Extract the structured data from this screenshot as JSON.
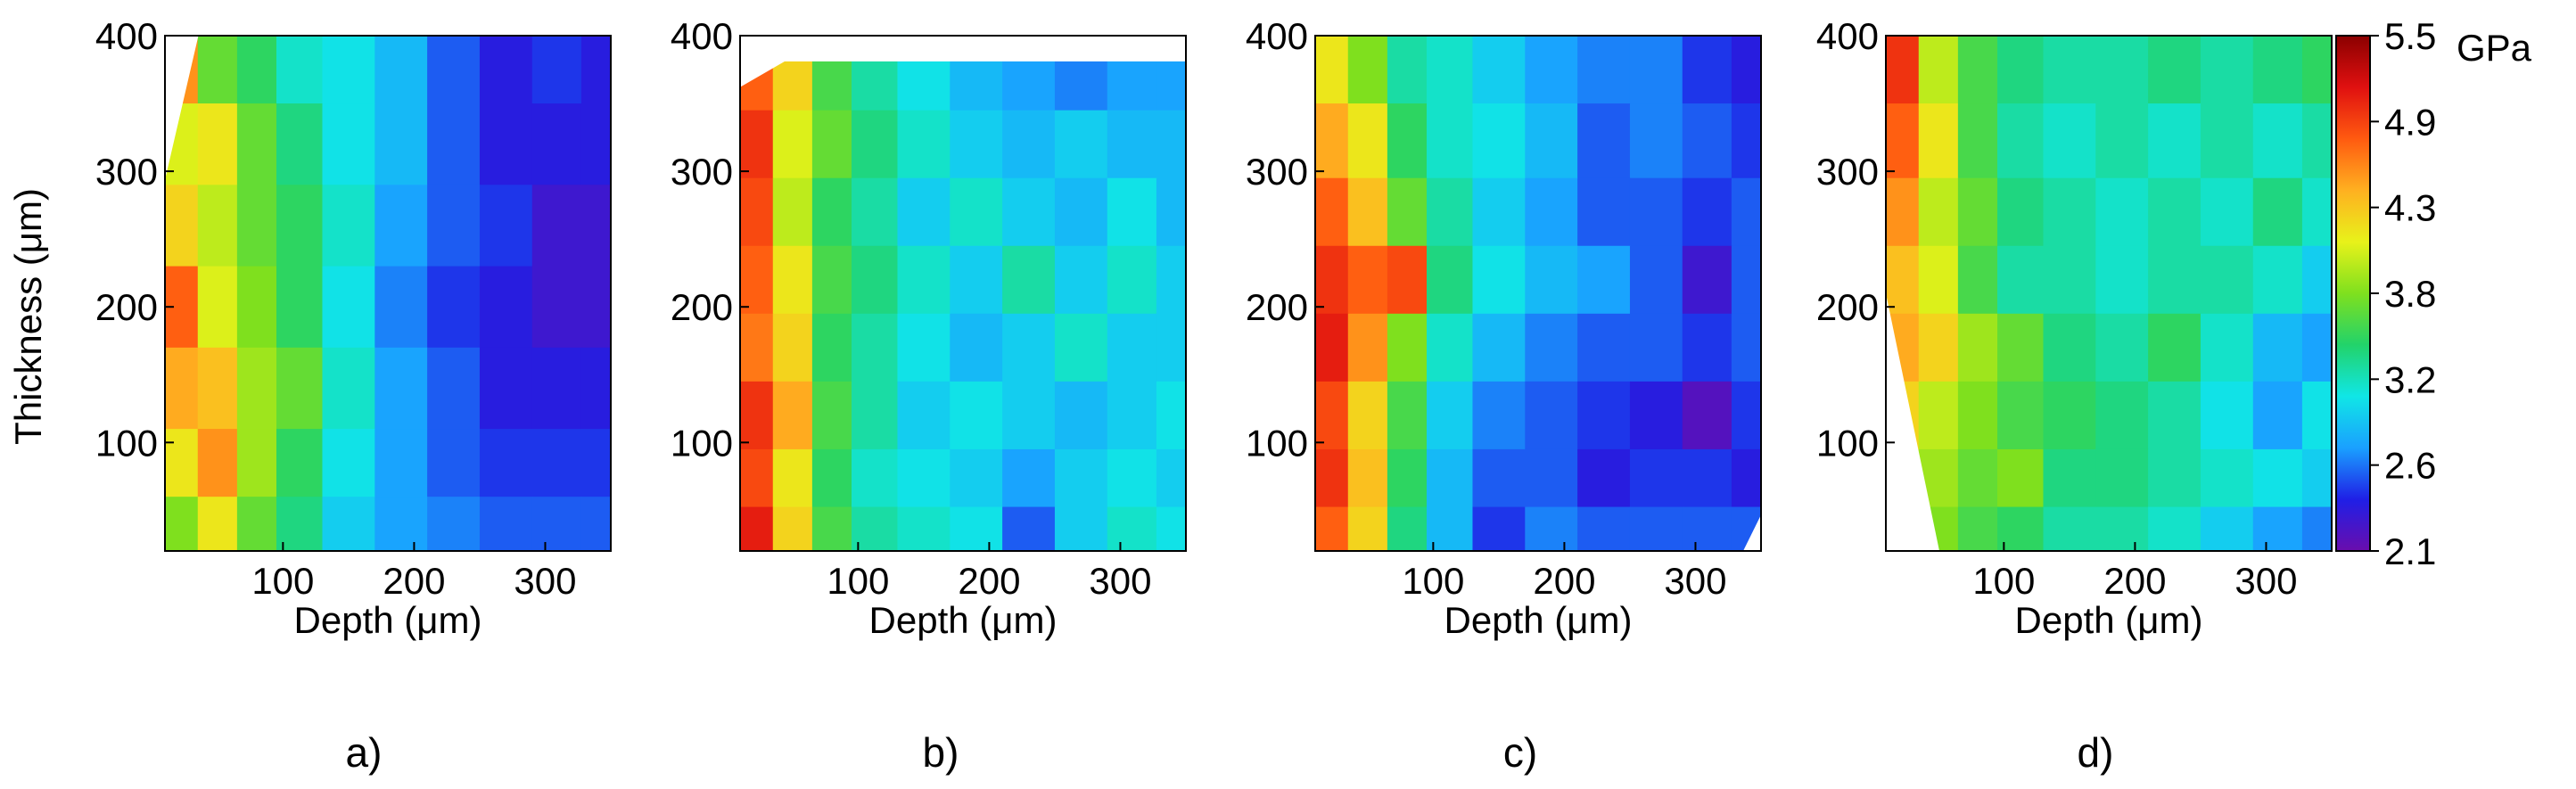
{
  "figure": {
    "y_axis_title": "Thickness (μm)",
    "x_axis_title": "Depth (μm)"
  },
  "colorbar": {
    "unit": "GPa",
    "tick_labels": [
      "5.5",
      "4.9",
      "4.3",
      "3.8",
      "3.2",
      "2.6",
      "2.1"
    ],
    "range": [
      2.1,
      5.5
    ],
    "colors": [
      "#6a0dad",
      "#1f1fe6",
      "#1aa0ff",
      "#10e6e6",
      "#22d36a",
      "#7fe01e",
      "#e8f21a",
      "#ffb020",
      "#ff5a10",
      "#e01010",
      "#8b0000"
    ]
  },
  "chart_data": [
    {
      "type": "heatmap",
      "panel_label": "a)",
      "xlabel": "Depth (μm)",
      "ylabel": "Thickness (μm)",
      "xlim": [
        10,
        350
      ],
      "ylim": [
        20,
        400
      ],
      "x_ticks": [
        100,
        200,
        300
      ],
      "y_ticks": [
        100,
        200,
        300,
        400
      ],
      "value_unit": "GPa",
      "rows_y": [
        380,
        320,
        260,
        200,
        140,
        80,
        40
      ],
      "cols_x": [
        20,
        50,
        80,
        110,
        150,
        190,
        230,
        270,
        310,
        345
      ],
      "values": [
        [
          4.6,
          3.7,
          3.5,
          3.2,
          3.1,
          2.9,
          2.6,
          2.4,
          2.5,
          2.4
        ],
        [
          4.1,
          4.2,
          3.7,
          3.4,
          3.1,
          2.9,
          2.6,
          2.4,
          2.4,
          2.4
        ],
        [
          4.3,
          4.0,
          3.7,
          3.5,
          3.2,
          2.8,
          2.6,
          2.5,
          2.3,
          2.3
        ],
        [
          4.8,
          4.1,
          3.8,
          3.5,
          3.1,
          2.7,
          2.5,
          2.4,
          2.3,
          2.3
        ],
        [
          4.5,
          4.4,
          3.9,
          3.7,
          3.2,
          2.8,
          2.6,
          2.4,
          2.4,
          2.4
        ],
        [
          4.2,
          4.6,
          3.9,
          3.5,
          3.1,
          2.8,
          2.6,
          2.5,
          2.5,
          2.5
        ],
        [
          3.8,
          4.2,
          3.7,
          3.4,
          3.0,
          2.8,
          2.7,
          2.6,
          2.6,
          2.6
        ]
      ]
    },
    {
      "type": "heatmap",
      "panel_label": "b)",
      "xlabel": "Depth (μm)",
      "ylabel": "",
      "xlim": [
        10,
        350
      ],
      "ylim": [
        20,
        400
      ],
      "x_ticks": [
        100,
        200,
        300
      ],
      "y_ticks": [
        100,
        200,
        300,
        400
      ],
      "value_unit": "GPa",
      "rows_y": [
        370,
        320,
        270,
        220,
        170,
        120,
        70,
        35
      ],
      "cols_x": [
        20,
        50,
        80,
        110,
        150,
        190,
        230,
        270,
        310,
        345
      ],
      "values": [
        [
          4.8,
          4.3,
          3.6,
          3.3,
          3.1,
          2.9,
          2.8,
          2.7,
          2.8,
          2.8
        ],
        [
          5.0,
          4.1,
          3.7,
          3.4,
          3.2,
          3.0,
          2.9,
          3.0,
          2.9,
          2.9
        ],
        [
          4.9,
          4.0,
          3.5,
          3.3,
          3.0,
          3.2,
          3.0,
          2.9,
          3.1,
          2.9
        ],
        [
          4.8,
          4.2,
          3.6,
          3.4,
          3.2,
          3.0,
          3.3,
          3.0,
          3.2,
          3.0
        ],
        [
          4.7,
          4.3,
          3.5,
          3.3,
          3.1,
          2.9,
          3.0,
          3.2,
          3.0,
          3.0
        ],
        [
          5.0,
          4.5,
          3.6,
          3.3,
          3.0,
          3.1,
          3.0,
          2.9,
          3.0,
          3.1
        ],
        [
          4.9,
          4.2,
          3.5,
          3.2,
          3.1,
          3.0,
          2.8,
          3.0,
          3.1,
          3.0
        ],
        [
          5.1,
          4.3,
          3.6,
          3.3,
          3.2,
          3.1,
          2.6,
          3.0,
          3.2,
          3.1
        ]
      ]
    },
    {
      "type": "heatmap",
      "panel_label": "c)",
      "xlabel": "Depth (μm)",
      "ylabel": "",
      "xlim": [
        10,
        350
      ],
      "ylim": [
        20,
        400
      ],
      "x_ticks": [
        100,
        200,
        300
      ],
      "y_ticks": [
        100,
        200,
        300,
        400
      ],
      "value_unit": "GPa",
      "rows_y": [
        380,
        320,
        270,
        220,
        170,
        120,
        70,
        35
      ],
      "cols_x": [
        20,
        50,
        80,
        110,
        150,
        190,
        230,
        270,
        310,
        345
      ],
      "values": [
        [
          4.2,
          3.8,
          3.3,
          3.2,
          3.0,
          2.8,
          2.7,
          2.7,
          2.5,
          2.4
        ],
        [
          4.5,
          4.2,
          3.5,
          3.2,
          3.1,
          2.9,
          2.6,
          2.7,
          2.6,
          2.5
        ],
        [
          4.8,
          4.4,
          3.7,
          3.3,
          3.0,
          2.8,
          2.6,
          2.6,
          2.5,
          2.6
        ],
        [
          5.0,
          4.8,
          4.9,
          3.4,
          3.1,
          2.9,
          2.8,
          2.6,
          2.3,
          2.6
        ],
        [
          5.1,
          4.6,
          3.8,
          3.2,
          2.9,
          2.7,
          2.6,
          2.6,
          2.5,
          2.6
        ],
        [
          4.9,
          4.3,
          3.6,
          3.0,
          2.7,
          2.6,
          2.5,
          2.4,
          2.2,
          2.5
        ],
        [
          5.0,
          4.4,
          3.5,
          2.9,
          2.6,
          2.6,
          2.4,
          2.5,
          2.5,
          2.4
        ],
        [
          4.8,
          4.3,
          3.4,
          2.9,
          2.5,
          2.7,
          2.6,
          2.6,
          2.6,
          2.6
        ]
      ]
    },
    {
      "type": "heatmap",
      "panel_label": "d)",
      "xlabel": "Depth (μm)",
      "ylabel": "",
      "xlim": [
        10,
        350
      ],
      "ylim": [
        20,
        400
      ],
      "x_ticks": [
        100,
        200,
        300
      ],
      "y_ticks": [
        100,
        200,
        300,
        400
      ],
      "value_unit": "GPa",
      "rows_y": [
        380,
        320,
        270,
        220,
        170,
        120,
        70,
        35
      ],
      "cols_x": [
        20,
        50,
        80,
        110,
        150,
        190,
        230,
        270,
        310,
        345
      ],
      "values": [
        [
          5.0,
          4.0,
          3.6,
          3.4,
          3.3,
          3.3,
          3.4,
          3.3,
          3.4,
          3.5
        ],
        [
          4.8,
          4.2,
          3.6,
          3.3,
          3.2,
          3.3,
          3.2,
          3.3,
          3.2,
          3.3
        ],
        [
          4.6,
          4.0,
          3.7,
          3.4,
          3.3,
          3.2,
          3.3,
          3.2,
          3.4,
          3.2
        ],
        [
          4.4,
          4.1,
          3.6,
          3.3,
          3.3,
          3.2,
          3.3,
          3.3,
          3.2,
          3.0
        ],
        [
          4.5,
          4.3,
          3.9,
          3.7,
          3.4,
          3.3,
          3.5,
          3.2,
          2.9,
          2.8
        ],
        [
          4.3,
          4.0,
          3.8,
          3.6,
          3.5,
          3.4,
          3.3,
          3.1,
          2.8,
          3.1
        ],
        [
          4.1,
          3.9,
          3.7,
          3.8,
          3.4,
          3.4,
          3.3,
          3.2,
          3.1,
          3.0
        ],
        [
          3.9,
          3.8,
          3.6,
          3.5,
          3.3,
          3.3,
          3.2,
          3.0,
          2.8,
          2.7
        ]
      ]
    }
  ]
}
